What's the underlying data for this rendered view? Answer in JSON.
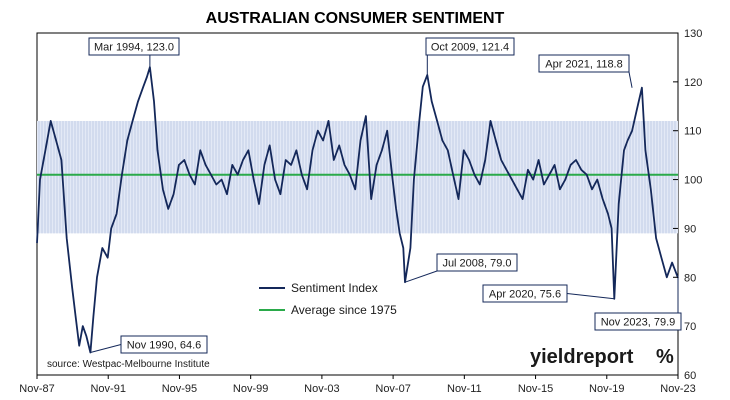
{
  "chart_data": {
    "type": "line",
    "title": "AUSTRALIAN CONSUMER SENTIMENT",
    "y_axis": {
      "range": [
        60,
        130
      ],
      "ticks": [
        60,
        70,
        80,
        90,
        100,
        110,
        120,
        130
      ],
      "position": "right"
    },
    "x_axis": {
      "range": [
        1987.83,
        2023.83
      ],
      "tick_labels": [
        "Nov-87",
        "Nov-91",
        "Nov-95",
        "Nov-99",
        "Nov-03",
        "Nov-07",
        "Nov-11",
        "Nov-15",
        "Nov-19",
        "Nov-23"
      ]
    },
    "band": {
      "from": 89,
      "to": 112
    },
    "grid": false,
    "legend_position": "center-left",
    "series": [
      {
        "name": "Sentiment Index",
        "color": "#14285a",
        "x": [
          1987.83,
          1988.0,
          1988.3,
          1988.6,
          1988.9,
          1989.2,
          1989.5,
          1989.8,
          1990.0,
          1990.2,
          1990.4,
          1990.6,
          1990.83,
          1991.0,
          1991.2,
          1991.5,
          1991.8,
          1992.0,
          1992.3,
          1992.6,
          1992.9,
          1993.2,
          1993.5,
          1993.8,
          1994.0,
          1994.17,
          1994.4,
          1994.6,
          1994.9,
          1995.2,
          1995.5,
          1995.8,
          1996.1,
          1996.4,
          1996.7,
          1997.0,
          1997.3,
          1997.6,
          1997.9,
          1998.2,
          1998.5,
          1998.8,
          1999.1,
          1999.4,
          1999.7,
          2000.0,
          2000.3,
          2000.6,
          2000.9,
          2001.2,
          2001.5,
          2001.8,
          2002.1,
          2002.4,
          2002.7,
          2003.0,
          2003.3,
          2003.6,
          2003.9,
          2004.2,
          2004.5,
          2004.8,
          2005.1,
          2005.4,
          2005.7,
          2006.0,
          2006.3,
          2006.6,
          2006.9,
          2007.2,
          2007.5,
          2007.8,
          2008.0,
          2008.2,
          2008.4,
          2008.5,
          2008.8,
          2009.0,
          2009.3,
          2009.5,
          2009.75,
          2010.0,
          2010.3,
          2010.6,
          2010.9,
          2011.2,
          2011.5,
          2011.8,
          2012.1,
          2012.4,
          2012.7,
          2013.0,
          2013.3,
          2013.6,
          2013.9,
          2014.2,
          2014.5,
          2014.8,
          2015.1,
          2015.4,
          2015.7,
          2016.0,
          2016.3,
          2016.6,
          2016.9,
          2017.2,
          2017.5,
          2017.8,
          2018.1,
          2018.4,
          2018.7,
          2019.0,
          2019.3,
          2019.6,
          2019.9,
          2020.1,
          2020.25,
          2020.5,
          2020.8,
          2021.0,
          2021.25,
          2021.5,
          2021.8,
          2022.0,
          2022.3,
          2022.6,
          2022.9,
          2023.2,
          2023.5,
          2023.83
        ],
        "values": [
          87,
          100,
          106,
          112,
          108,
          104,
          88,
          78,
          72,
          66,
          70,
          68,
          64.6,
          72,
          80,
          86,
          84,
          90,
          93,
          101,
          108,
          112,
          116,
          119,
          121,
          123.0,
          116,
          106,
          98,
          94,
          97,
          103,
          104,
          101,
          99,
          106,
          103,
          101,
          99,
          100,
          97,
          103,
          101,
          104,
          106,
          100,
          95,
          103,
          107,
          100,
          97,
          104,
          103,
          106,
          101,
          98,
          106,
          110,
          108,
          112,
          104,
          107,
          103,
          101,
          98,
          108,
          113,
          96,
          103,
          106,
          110,
          100,
          94,
          89,
          86,
          79.0,
          86,
          100,
          112,
          119,
          121.4,
          116,
          112,
          108,
          106,
          101,
          96,
          106,
          104,
          101,
          99,
          104,
          112,
          108,
          104,
          102,
          100,
          98,
          96,
          102,
          100,
          104,
          99,
          101,
          103,
          98,
          100,
          103,
          104,
          102,
          101,
          98,
          100,
          96,
          93,
          90,
          75.6,
          95,
          106,
          108,
          110,
          114,
          118.8,
          106,
          98,
          88,
          84,
          80,
          83,
          79.9
        ]
      },
      {
        "name": "Average since 1975",
        "color": "#2aaa4a",
        "x": [
          1987.83,
          2023.83
        ],
        "values": [
          101,
          101
        ]
      }
    ],
    "annotations": [
      {
        "text": "Mar 1994, 123.0",
        "x": 1994.17,
        "y": 123.0
      },
      {
        "text": "Nov 1990, 64.6",
        "x": 1990.83,
        "y": 64.6
      },
      {
        "text": "Oct 2009, 121.4",
        "x": 2009.75,
        "y": 121.4
      },
      {
        "text": "Jul 2008, 79.0",
        "x": 2008.5,
        "y": 79.0
      },
      {
        "text": "Apr 2020, 75.6",
        "x": 2020.25,
        "y": 75.6
      },
      {
        "text": "Apr 2021, 118.8",
        "x": 2021.25,
        "y": 118.8
      },
      {
        "text": "Nov 2023, 79.9",
        "x": 2023.83,
        "y": 79.9
      }
    ],
    "source": "source: Westpac-Melbourne Institute"
  },
  "branding": {
    "logo": "yieldreport",
    "logo_symbol": "%",
    "logo_color": "#1a1a1a",
    "accent_color": "#d9232e"
  }
}
